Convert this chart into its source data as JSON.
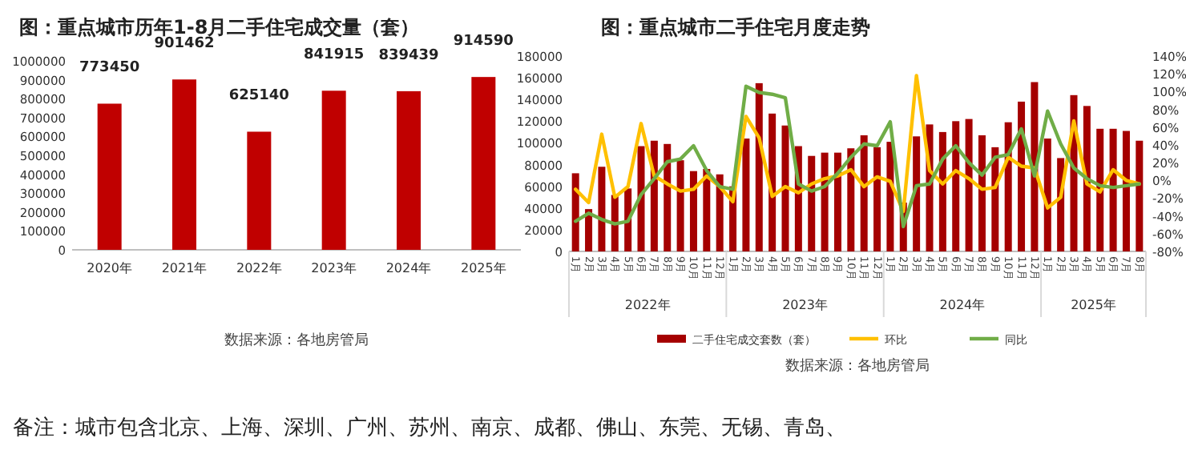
{
  "chart_data": [
    {
      "type": "bar",
      "title": "图：重点城市历年1-8月二手住宅成交量（套）",
      "categories": [
        "2020年",
        "2021年",
        "2022年",
        "2023年",
        "2024年",
        "2025年"
      ],
      "values": [
        773450,
        901462,
        625140,
        841915,
        839439,
        914590
      ],
      "color": "#c00000",
      "data_labels": true,
      "ylim": [
        0,
        1000000
      ],
      "yticks": [
        0,
        100000,
        200000,
        300000,
        400000,
        500000,
        600000,
        700000,
        800000,
        900000,
        1000000
      ],
      "annotations": [
        "数据来源：各地房管局",
        "备注：城市包含北京、上海、深圳、广州、苏州、南京、成都、佛山、东莞、无锡、青岛、"
      ]
    },
    {
      "type": "bar",
      "title": "图：重点城市二手住宅月度走势",
      "categories": [
        "1月",
        "2月",
        "3月",
        "4月",
        "5月",
        "6月",
        "7月",
        "8月",
        "9月",
        "10月",
        "11月",
        "12月",
        "1月",
        "2月",
        "3月",
        "4月",
        "5月",
        "6月",
        "7月",
        "8月",
        "9月",
        "10月",
        "11月",
        "12月",
        "1月",
        "2月",
        "3月",
        "4月",
        "5月",
        "6月",
        "7月",
        "8月",
        "9月",
        "10月",
        "11月",
        "12月",
        "1月",
        "2月",
        "3月",
        "4月",
        "5月",
        "6月",
        "7月",
        "8月"
      ],
      "series": [
        {
          "name": "二手住宅成交套数（套）",
          "type": "bar",
          "color": "#a50000",
          "values": [
            72000,
            39000,
            78000,
            52000,
            58000,
            97000,
            102000,
            99000,
            84000,
            74000,
            76000,
            71000,
            60000,
            104000,
            155000,
            127000,
            116000,
            97000,
            88000,
            91000,
            91000,
            95000,
            107000,
            96000,
            101000,
            45000,
            106000,
            117000,
            110000,
            120000,
            122000,
            107000,
            96000,
            119000,
            138000,
            156000,
            104000,
            86000,
            144000,
            134000,
            113000,
            113000,
            111000,
            102000
          ]
        },
        {
          "name": "环比",
          "type": "line",
          "axis": "y2",
          "color": "#ffc000",
          "values": [
            -10,
            -25,
            52,
            -19,
            -7,
            64,
            5,
            -4,
            -12,
            -10,
            5,
            -7,
            -24,
            72,
            48,
            -18,
            -7,
            -14,
            -4,
            2,
            5,
            12,
            -7,
            4,
            -1,
            -35,
            118,
            11,
            -4,
            11,
            2,
            -10,
            -8,
            26,
            16,
            14,
            -31,
            -19,
            67,
            -4,
            -13,
            12,
            0,
            -4
          ]
        },
        {
          "name": "同比",
          "type": "line",
          "axis": "y2",
          "color": "#70ad47",
          "values": [
            -46,
            -37,
            -44,
            -49,
            -46,
            -16,
            2,
            21,
            24,
            39,
            11,
            -7,
            -10,
            106,
            99,
            97,
            93,
            -4,
            -12,
            -7,
            8,
            26,
            41,
            39,
            66,
            -52,
            -6,
            -4,
            24,
            39,
            20,
            6,
            26,
            29,
            58,
            5,
            78,
            41,
            14,
            2,
            -6,
            -8,
            -6,
            -4
          ]
        }
      ],
      "ylim": [
        0,
        180000
      ],
      "yticks": [
        0,
        20000,
        40000,
        60000,
        80000,
        100000,
        120000,
        140000,
        160000,
        180000
      ],
      "y2lim": [
        -80,
        140
      ],
      "y2ticks": [
        {
          "value": -80,
          "label": "-80%"
        },
        {
          "value": -60,
          "label": "-60%"
        },
        {
          "value": -40,
          "label": "-40%"
        },
        {
          "value": -20,
          "label": "-20%"
        },
        {
          "value": 0,
          "label": "0%"
        },
        {
          "value": 20,
          "label": "20%"
        },
        {
          "value": 40,
          "label": "40%"
        },
        {
          "value": 60,
          "label": "60%"
        },
        {
          "value": 80,
          "label": "80%"
        },
        {
          "value": 100,
          "label": "100%"
        },
        {
          "value": 120,
          "label": "120%"
        },
        {
          "value": 140,
          "label": "140%"
        }
      ],
      "legend": "bottom",
      "annotations": [
        "2022年",
        "2023年",
        "2024年",
        "2025年",
        "数据来源：各地房管局"
      ]
    }
  ]
}
